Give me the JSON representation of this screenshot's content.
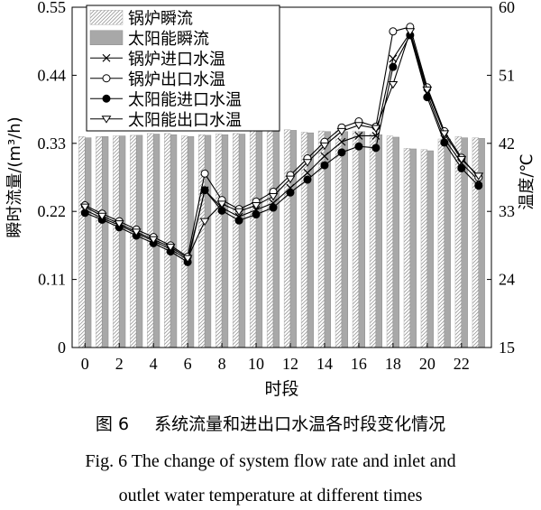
{
  "chart_data": {
    "type": "bar",
    "xlabel": "时段",
    "ylabel_left": "瞬时流量/(m³/h)",
    "ylabel_right": "温度/℃",
    "left_axis": {
      "min": 0,
      "max": 0.55,
      "ticks": [
        "0",
        "0.11",
        "0.22",
        "0.33",
        "0.44",
        "0.55"
      ]
    },
    "right_axis": {
      "min": 15,
      "max": 60,
      "ticks": [
        "15",
        "24",
        "33",
        "42",
        "51",
        "60"
      ]
    },
    "x": [
      0,
      1,
      2,
      3,
      4,
      5,
      6,
      7,
      8,
      9,
      10,
      11,
      12,
      13,
      14,
      15,
      16,
      17,
      18,
      19,
      20,
      21,
      22,
      23
    ],
    "x_tick_labels": [
      "0",
      "2",
      "4",
      "6",
      "8",
      "10",
      "12",
      "14",
      "16",
      "18",
      "20",
      "22"
    ],
    "x_tick_values": [
      0,
      2,
      4,
      6,
      8,
      10,
      12,
      14,
      16,
      18,
      20,
      22
    ],
    "bar_series": [
      {
        "name": "锅炉瞬流",
        "style": "hatched",
        "axis": "left",
        "values": [
          0.341,
          0.341,
          0.342,
          0.343,
          0.346,
          0.346,
          0.342,
          0.344,
          0.345,
          0.346,
          0.351,
          0.351,
          0.352,
          0.348,
          0.35,
          0.35,
          0.35,
          0.345,
          0.342,
          0.322,
          0.32,
          0.337,
          0.341,
          0.339
        ]
      },
      {
        "name": "太阳能瞬流",
        "style": "solid-gray",
        "axis": "left",
        "values": [
          0.339,
          0.341,
          0.342,
          0.343,
          0.345,
          0.344,
          0.341,
          0.343,
          0.344,
          0.345,
          0.35,
          0.349,
          0.351,
          0.347,
          0.349,
          0.349,
          0.349,
          0.344,
          0.34,
          0.321,
          0.318,
          0.337,
          0.339,
          0.338
        ]
      }
    ],
    "line_series": [
      {
        "name": "锅炉进口水温",
        "marker": "x",
        "axis": "right",
        "values": [
          33.2,
          32.1,
          31.2,
          30.1,
          29.1,
          28.0,
          26.6,
          35.8,
          33.5,
          32.3,
          33.2,
          34.1,
          36.1,
          38.1,
          40.3,
          42.2,
          43.0,
          43.0,
          53.2,
          56.6,
          48.6,
          42.6,
          39.4,
          37.1
        ]
      },
      {
        "name": "锅炉出口水温",
        "marker": "circle-open",
        "axis": "right",
        "values": [
          33.8,
          32.7,
          31.7,
          30.6,
          29.6,
          28.5,
          27.0,
          38.0,
          34.5,
          33.3,
          34.3,
          35.6,
          37.8,
          40.0,
          42.2,
          44.1,
          44.9,
          44.2,
          56.8,
          57.4,
          49.4,
          43.6,
          40.1,
          37.5
        ]
      },
      {
        "name": "太阳能进口水温",
        "marker": "circle-filled",
        "axis": "right",
        "values": [
          32.8,
          31.9,
          30.9,
          29.8,
          28.8,
          27.7,
          26.3,
          35.8,
          33.1,
          31.8,
          32.6,
          33.5,
          35.5,
          37.2,
          39.1,
          40.8,
          41.6,
          41.4,
          52.1,
          56.3,
          48.1,
          42.1,
          38.7,
          36.4
        ]
      },
      {
        "name": "太阳能出口水温",
        "marker": "triangle-down-open",
        "axis": "right",
        "values": [
          33.6,
          32.4,
          31.4,
          30.3,
          29.3,
          28.3,
          26.8,
          31.7,
          34.0,
          33.0,
          33.8,
          35.0,
          37.3,
          39.5,
          41.7,
          43.6,
          44.4,
          44.0,
          49.8,
          56.8,
          49.1,
          43.3,
          39.9,
          37.7
        ]
      }
    ],
    "legend": {
      "position": "top-left"
    }
  },
  "captions": {
    "cn_number": "图 6",
    "cn_text": "系统流量和进出口水温各时段变化情况",
    "en_line1": "Fig. 6 The change of system flow rate and inlet and",
    "en_line2": "outlet water temperature at different times"
  }
}
